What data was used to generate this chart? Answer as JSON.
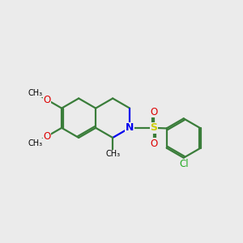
{
  "background_color": "#EBEBEB",
  "bond_color": "#3a7d3a",
  "nitrogen_color": "#0000EE",
  "oxygen_color": "#DD0000",
  "sulfur_color": "#CCCC00",
  "chlorine_color": "#22AA22",
  "text_color": "#000000",
  "lw": 1.6,
  "figsize": [
    3.0,
    3.0
  ],
  "dpi": 100,
  "xlim": [
    0,
    10
  ],
  "ylim": [
    0,
    10
  ]
}
